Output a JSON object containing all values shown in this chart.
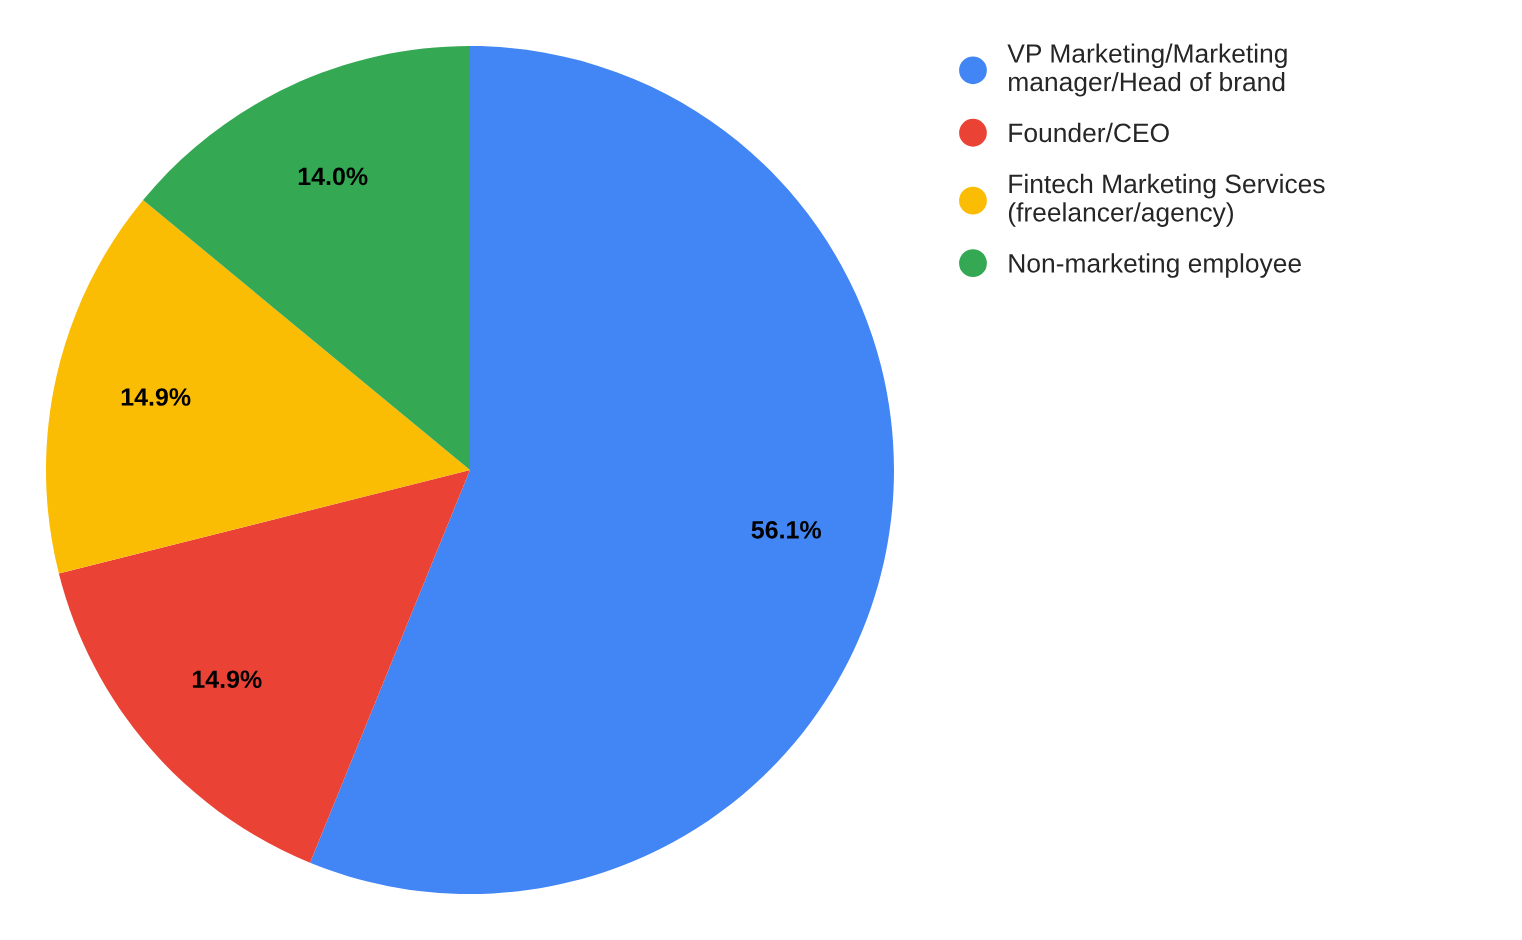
{
  "chart_data": {
    "type": "pie",
    "categories": [
      "VP Marketing/Marketing manager/Head of brand",
      "Founder/CEO",
      "Fintech Marketing Services (freelancer/agency)",
      "Non-marketing employee"
    ],
    "values": [
      56.1,
      14.9,
      14.9,
      14.0
    ],
    "colors": [
      "#4285f4",
      "#ea4335",
      "#fbbc04",
      "#34a853"
    ],
    "value_labels": [
      "56.1%",
      "14.9%",
      "14.9%",
      "14.0%"
    ],
    "legend": "top right"
  }
}
